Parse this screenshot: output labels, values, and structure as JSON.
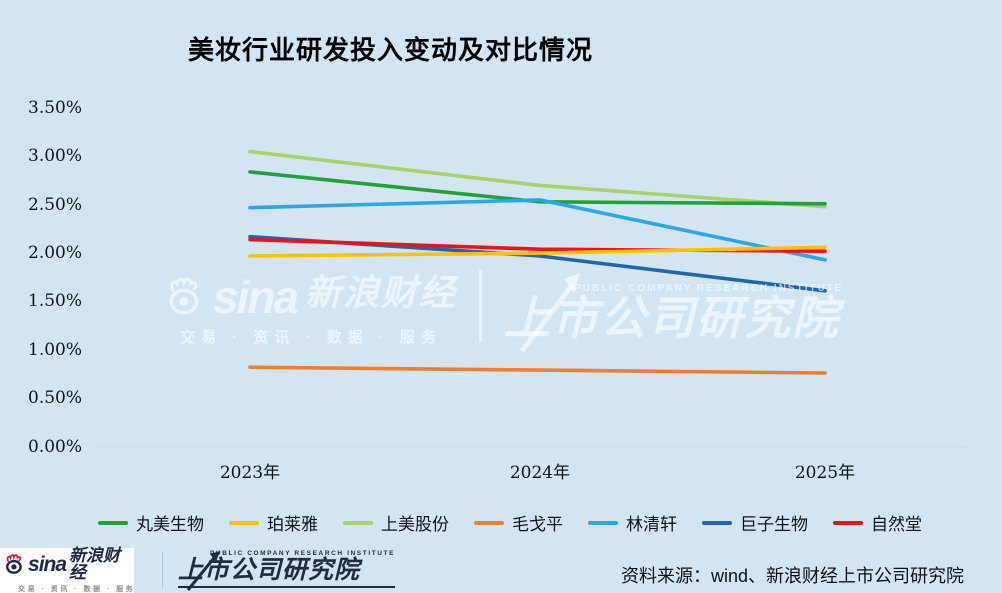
{
  "title": "美妆行业研发投入变动及对比情况",
  "chart_data": {
    "type": "line",
    "title": "美妆行业研发投入变动及对比情况",
    "x": [
      "2023年",
      "2024年",
      "2025年"
    ],
    "series": [
      {
        "name": "丸美生物",
        "color": "#21a138",
        "values": [
          2.84,
          2.53,
          2.51
        ]
      },
      {
        "name": "珀莱雅",
        "color": "#fdc301",
        "values": [
          1.97,
          2.0,
          2.06
        ]
      },
      {
        "name": "上美股份",
        "color": "#a4d46a",
        "values": [
          3.05,
          2.7,
          2.48
        ]
      },
      {
        "name": "毛戈平",
        "color": "#ee7e30",
        "values": [
          0.82,
          0.79,
          0.76
        ]
      },
      {
        "name": "林清轩",
        "color": "#2aa7eb",
        "values": [
          2.47,
          2.55,
          1.93
        ]
      },
      {
        "name": "巨子生物",
        "color": "#2066ae",
        "values": [
          2.17,
          1.97,
          1.61
        ]
      },
      {
        "name": "自然堂",
        "color": "#ec121c",
        "values": [
          2.14,
          2.04,
          2.02
        ]
      }
    ],
    "draw_order": [
      2,
      0,
      5,
      4,
      6,
      1,
      3
    ],
    "ylim": [
      0,
      3.5
    ],
    "ytick_labels": [
      "3.50%",
      "3.00%",
      "2.50%",
      "2.00%",
      "1.50%",
      "1.00%",
      "0.50%",
      "0.00%"
    ],
    "grid": "off",
    "legend_position": "bottom",
    "unit": "percent"
  },
  "watermark": {
    "brand": "sina",
    "brand_cn": "新浪财经",
    "tagline": "交易 · 资讯 · 数据 · 服务",
    "institute_en": "PUBLIC COMPANY RESEARCH INSTITUTE",
    "institute_cn": "上市公司研究院"
  },
  "footer": {
    "sina_brand": "sina",
    "sina_brand_cn": "新浪财经",
    "sina_tagline": "交易 · 资讯 · 数据 · 服务",
    "institute_en": "PUBLIC COMPANY RESEARCH INSTITUTE",
    "institute_cn": "上市公司研究院",
    "source": "资料来源：wind、新浪财经上市公司研究院"
  },
  "colors": {
    "background": "#d3e5f2",
    "axis_line": "#ded9d0",
    "text": "#141414",
    "sina_red": "#e8112d",
    "sina_navy": "#1d2945"
  }
}
